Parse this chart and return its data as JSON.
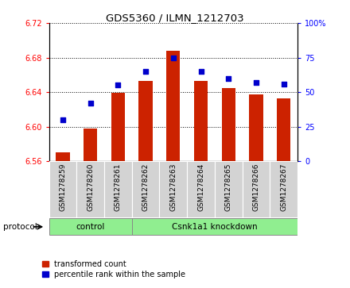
{
  "title": "GDS5360 / ILMN_1212703",
  "samples": [
    "GSM1278259",
    "GSM1278260",
    "GSM1278261",
    "GSM1278262",
    "GSM1278263",
    "GSM1278264",
    "GSM1278265",
    "GSM1278266",
    "GSM1278267"
  ],
  "red_values": [
    6.57,
    6.598,
    6.639,
    6.653,
    6.688,
    6.653,
    6.645,
    6.637,
    6.633
  ],
  "blue_values": [
    30,
    42,
    55,
    65,
    75,
    65,
    60,
    57,
    56
  ],
  "ylim_left": [
    6.56,
    6.72
  ],
  "ylim_right": [
    0,
    100
  ],
  "yticks_left": [
    6.56,
    6.6,
    6.64,
    6.68,
    6.72
  ],
  "yticks_right": [
    0,
    25,
    50,
    75,
    100
  ],
  "ytick_right_labels": [
    "0",
    "25",
    "50",
    "75",
    "100%"
  ],
  "bar_color": "#cc2200",
  "dot_color": "#0000cc",
  "bar_bottom": 6.56,
  "ctrl_count": 3,
  "kd_count": 6,
  "group_ctrl_label": "control",
  "group_kd_label": "Csnk1a1 knockdown",
  "protocol_label": "protocol",
  "legend_red": "transformed count",
  "legend_blue": "percentile rank within the sample",
  "group_area_color": "#90ee90",
  "sample_area_color": "#d3d3d3"
}
